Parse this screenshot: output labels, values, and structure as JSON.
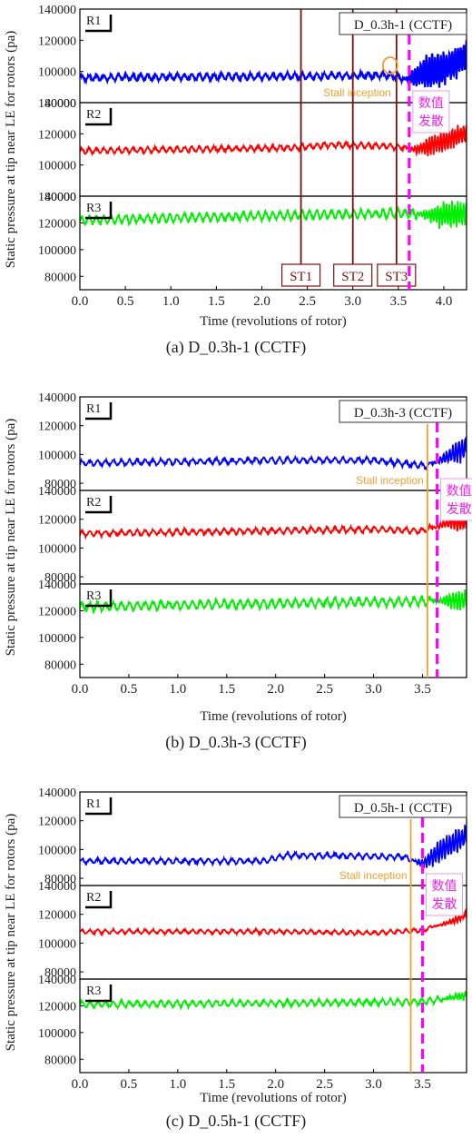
{
  "chart_data": [
    {
      "type": "line",
      "caption": "(a) D_0.3h-1 (CCTF)",
      "case_label": "D_0.3h-1 (CCTF)",
      "ylabel": "Static pressure at tip near LE for rotors (pa)",
      "xlabel": "Time (revolutions of rotor)",
      "xlim": [
        0,
        4.25
      ],
      "xticks": [
        "0.0",
        "0.5",
        "1.0",
        "1.5",
        "2.0",
        "2.5",
        "3.0",
        "3.5",
        "4.0"
      ],
      "stall_inception": {
        "x": 3.46,
        "label": "Stall inception",
        "marker": "circle"
      },
      "divergence": {
        "x": 3.62,
        "label": "数值发散"
      },
      "st_lines": [
        {
          "x": 2.43,
          "label": "ST1"
        },
        {
          "x": 3.0,
          "label": "ST2"
        },
        {
          "x": 3.48,
          "label": "ST3"
        }
      ],
      "panels": [
        {
          "name": "R1",
          "color": "#0000ff",
          "ylim": [
            80000,
            140000
          ],
          "yticks": [
            "140000",
            "120000",
            "100000",
            "80000"
          ],
          "series": [
            [
              0,
              96000
            ],
            [
              2.5,
              97000
            ],
            [
              3.4,
              97500
            ],
            [
              3.6,
              95000
            ],
            [
              3.8,
              100000
            ],
            [
              4.0,
              102000
            ],
            [
              4.25,
              110000
            ]
          ],
          "amp": 2200,
          "osc_start": 3.55,
          "osc_amp": 12000
        },
        {
          "name": "R2",
          "color": "#ff0000",
          "ylim": [
            80000,
            140000
          ],
          "yticks": [
            "140000",
            "120000",
            "100000",
            "80000"
          ],
          "series": [
            [
              0,
              109000
            ],
            [
              2.3,
              111000
            ],
            [
              2.8,
              113000
            ],
            [
              3.4,
              112000
            ],
            [
              3.7,
              110000
            ],
            [
              4.0,
              115000
            ],
            [
              4.25,
              121000
            ]
          ],
          "amp": 2000,
          "osc_start": 3.6,
          "osc_amp": 7000
        },
        {
          "name": "R3",
          "color": "#00ee00",
          "ylim": [
            70000,
            140000
          ],
          "yticks": [
            "140000",
            "120000",
            "100000",
            "80000"
          ],
          "series": [
            [
              0,
              122000
            ],
            [
              2.5,
              126000
            ],
            [
              3.5,
              127000
            ],
            [
              4.0,
              126000
            ],
            [
              4.25,
              127000
            ]
          ],
          "amp": 3500,
          "osc_start": 3.7,
          "osc_amp": 10000
        }
      ]
    },
    {
      "type": "line",
      "caption": "(b) D_0.3h-3 (CCTF)",
      "case_label": "D_0.3h-3 (CCTF)",
      "ylabel": "Static pressure at tip near LE for rotors (pa)",
      "xlabel": "Time (revolutions of rotor)",
      "xlim": [
        0,
        3.95
      ],
      "xticks": [
        "0.0",
        "0.5",
        "1.0",
        "1.5",
        "2.0",
        "2.5",
        "3.0",
        "3.5"
      ],
      "stall_inception": {
        "x": 3.55,
        "label": "Stall inception",
        "marker": "line"
      },
      "divergence": {
        "x": 3.65,
        "label": "数值发散"
      },
      "st_lines": [],
      "panels": [
        {
          "name": "R1",
          "color": "#0000ff",
          "ylim": [
            75000,
            140000
          ],
          "yticks": [
            "140000",
            "120000",
            "100000",
            "80000"
          ],
          "series": [
            [
              0,
              94000
            ],
            [
              2.0,
              96000
            ],
            [
              3.0,
              96000
            ],
            [
              3.55,
              92000
            ],
            [
              3.8,
              100000
            ],
            [
              3.95,
              105000
            ]
          ],
          "amp": 2200,
          "osc_start": 3.6,
          "osc_amp": 9000
        },
        {
          "name": "R2",
          "color": "#ff0000",
          "ylim": [
            75000,
            140000
          ],
          "yticks": [
            "140000",
            "120000",
            "100000",
            "80000"
          ],
          "series": [
            [
              0,
              110000
            ],
            [
              2.0,
              112000
            ],
            [
              3.0,
              113000
            ],
            [
              3.5,
              112000
            ],
            [
              3.8,
              118000
            ],
            [
              3.95,
              117000
            ]
          ],
          "amp": 2200,
          "osc_start": 3.6,
          "osc_amp": 6000
        },
        {
          "name": "R3",
          "color": "#00ee00",
          "ylim": [
            70000,
            140000
          ],
          "yticks": [
            "140000",
            "120000",
            "100000",
            "80000"
          ],
          "series": [
            [
              0,
              123000
            ],
            [
              2.5,
              126000
            ],
            [
              3.5,
              127000
            ],
            [
              3.95,
              128000
            ]
          ],
          "amp": 3500,
          "osc_start": 3.6,
          "osc_amp": 8000
        }
      ]
    },
    {
      "type": "line",
      "caption": "(c) D_0.5h-1 (CCTF)",
      "case_label": "D_0.5h-1 (CCTF)",
      "ylabel": "Static pressure at tip near LE for rotors (pa)",
      "xlabel": "Time (revolutions of rotor)",
      "xlim": [
        0,
        3.95
      ],
      "xticks": [
        "0.0",
        "0.5",
        "1.0",
        "1.5",
        "2.0",
        "2.5",
        "3.0",
        "3.5"
      ],
      "stall_inception": {
        "x": 3.38,
        "label": "Stall inception",
        "marker": "line"
      },
      "divergence": {
        "x": 3.5,
        "label": "数值发散"
      },
      "st_lines": [],
      "panels": [
        {
          "name": "R1",
          "color": "#0000ff",
          "ylim": [
            75000,
            140000
          ],
          "yticks": [
            "140000",
            "120000",
            "100000",
            "80000"
          ],
          "series": [
            [
              0,
              92000
            ],
            [
              1.9,
              92000
            ],
            [
              2.1,
              96000
            ],
            [
              3.3,
              95000
            ],
            [
              3.5,
              90000
            ],
            [
              3.7,
              100000
            ],
            [
              3.95,
              110000
            ]
          ],
          "amp": 2000,
          "osc_start": 3.4,
          "osc_amp": 9000
        },
        {
          "name": "R2",
          "color": "#ff0000",
          "ylim": [
            75000,
            140000
          ],
          "yticks": [
            "140000",
            "120000",
            "100000",
            "80000"
          ],
          "series": [
            [
              0,
              108000
            ],
            [
              2.0,
              108000
            ],
            [
              3.0,
              107000
            ],
            [
              3.5,
              109000
            ],
            [
              3.8,
              115000
            ],
            [
              3.95,
              120000
            ]
          ],
          "amp": 1600,
          "osc_start": 3.6,
          "osc_amp": 3000
        },
        {
          "name": "R3",
          "color": "#00ee00",
          "ylim": [
            70000,
            140000
          ],
          "yticks": [
            "140000",
            "120000",
            "100000",
            "80000"
          ],
          "series": [
            [
              0,
              121000
            ],
            [
              2.0,
              122000
            ],
            [
              3.5,
              123000
            ],
            [
              3.95,
              128000
            ]
          ],
          "amp": 2500,
          "osc_start": 3.7,
          "osc_amp": 4000
        }
      ]
    }
  ]
}
